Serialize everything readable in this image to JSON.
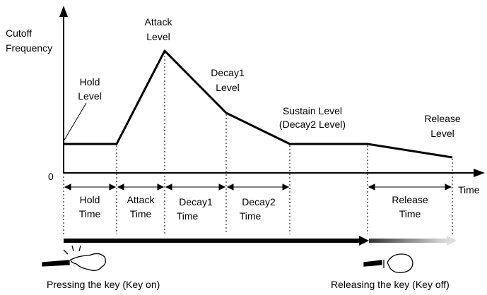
{
  "axes": {
    "y_label": [
      "Cutoff",
      "Frequency"
    ],
    "origin": "0",
    "x_label": "Time"
  },
  "levels": [
    {
      "lines": [
        "Hold",
        "Level"
      ]
    },
    {
      "lines": [
        "Attack",
        "Level"
      ]
    },
    {
      "lines": [
        "Decay1",
        "Level"
      ]
    },
    {
      "lines": [
        "Sustain Level",
        "(Decay2 Level)"
      ]
    },
    {
      "lines": [
        "Release",
        "Level"
      ]
    }
  ],
  "times": [
    {
      "lines": [
        "Hold",
        "Time"
      ]
    },
    {
      "lines": [
        "Attack",
        "Time"
      ]
    },
    {
      "lines": [
        "Decay1",
        "Time"
      ]
    },
    {
      "lines": [
        "Decay2",
        "Time"
      ]
    },
    {
      "lines": [
        "Release",
        "Time"
      ]
    }
  ],
  "captions": {
    "key_on": "Pressing the key (Key on)",
    "key_off": "Releasing the key (Key off)"
  }
}
